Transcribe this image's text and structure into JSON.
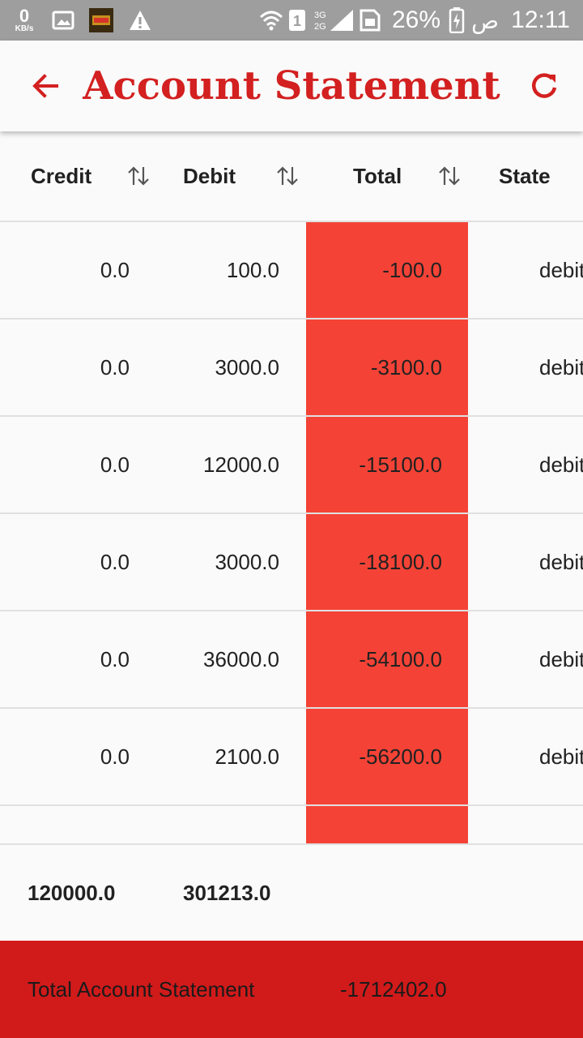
{
  "status_bar": {
    "speed_value": "0",
    "speed_unit": "KB/s",
    "battery_pct": "26%",
    "ampm": "ص",
    "time": "12:11",
    "icons": [
      "image-icon",
      "app-icon",
      "warning-icon",
      "wifi-icon",
      "sim-icon",
      "signal-icon",
      "battery-icon"
    ]
  },
  "app_bar": {
    "title": "Account Statement",
    "back_icon": "arrow-left-icon",
    "refresh_icon": "refresh-icon",
    "accent": "#d32020"
  },
  "table": {
    "columns": [
      {
        "label": "Credit",
        "sortable": true
      },
      {
        "label": "Debit",
        "sortable": true
      },
      {
        "label": "Total",
        "sortable": true
      },
      {
        "label": "State",
        "sortable": false
      }
    ],
    "rows": [
      {
        "credit": "0.0",
        "debit": "100.0",
        "total": "-100.0",
        "state": "debit"
      },
      {
        "credit": "0.0",
        "debit": "3000.0",
        "total": "-3100.0",
        "state": "debit"
      },
      {
        "credit": "0.0",
        "debit": "12000.0",
        "total": "-15100.0",
        "state": "debit"
      },
      {
        "credit": "0.0",
        "debit": "3000.0",
        "total": "-18100.0",
        "state": "debit"
      },
      {
        "credit": "0.0",
        "debit": "36000.0",
        "total": "-54100.0",
        "state": "debit"
      },
      {
        "credit": "0.0",
        "debit": "2100.0",
        "total": "-56200.0",
        "state": "debit"
      }
    ],
    "total_cell_color": "#f44336",
    "sums": {
      "credit": "120000.0",
      "debit": "301213.0"
    }
  },
  "footer": {
    "label": "Total Account Statement",
    "value": "-1712402.0",
    "color": "#d11a1a"
  }
}
